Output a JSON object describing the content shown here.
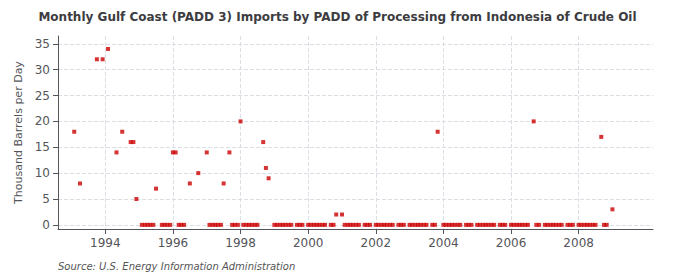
{
  "chart_data": {
    "type": "scatter",
    "title": "Monthly Gulf Coast (PADD 3) Imports by PADD of Processing from Indonesia of Crude Oil",
    "ylabel": "Thousand Barrels per Day",
    "annotation": "Source: U.S. Energy Information Administration",
    "color": "#cc0000",
    "marker": "square",
    "grid": true,
    "xlim": [
      1992.6,
      2010.2
    ],
    "xticks": [
      1994,
      1996,
      1998,
      2000,
      2002,
      2004,
      2006,
      2008
    ],
    "ylim": [
      -0.8,
      36.5
    ],
    "yticks": [
      0,
      5,
      10,
      15,
      20,
      25,
      30,
      35
    ],
    "x": [
      1993.08,
      1993.25,
      1993.75,
      1993.92,
      1994.08,
      1994.33,
      1994.5,
      1994.75,
      1994.83,
      1994.92,
      1995.08,
      1995.17,
      1995.25,
      1995.33,
      1995.42,
      1995.5,
      1995.67,
      1995.75,
      1995.83,
      1995.92,
      1996.0,
      1996.08,
      1996.17,
      1996.25,
      1996.33,
      1996.5,
      1996.75,
      1997.0,
      1997.08,
      1997.17,
      1997.25,
      1997.33,
      1997.42,
      1997.5,
      1997.67,
      1997.75,
      1997.83,
      1997.92,
      1998.0,
      1998.08,
      1998.17,
      1998.25,
      1998.33,
      1998.42,
      1998.5,
      1998.67,
      1998.75,
      1998.83,
      1999.0,
      1999.08,
      1999.17,
      1999.25,
      1999.33,
      1999.42,
      1999.5,
      1999.67,
      1999.75,
      1999.83,
      2000.0,
      2000.08,
      2000.17,
      2000.25,
      2000.33,
      2000.42,
      2000.5,
      2000.67,
      2000.75,
      2000.83,
      2001.0,
      2001.08,
      2001.17,
      2001.25,
      2001.33,
      2001.42,
      2001.5,
      2001.67,
      2001.75,
      2001.83,
      2002.0,
      2002.08,
      2002.17,
      2002.25,
      2002.33,
      2002.42,
      2002.5,
      2002.67,
      2002.75,
      2002.83,
      2003.0,
      2003.08,
      2003.17,
      2003.25,
      2003.33,
      2003.42,
      2003.5,
      2003.67,
      2003.75,
      2003.83,
      2004.0,
      2004.08,
      2004.17,
      2004.25,
      2004.33,
      2004.42,
      2004.5,
      2004.67,
      2004.75,
      2004.83,
      2005.0,
      2005.08,
      2005.17,
      2005.25,
      2005.33,
      2005.42,
      2005.5,
      2005.67,
      2005.75,
      2005.83,
      2006.0,
      2006.08,
      2006.17,
      2006.25,
      2006.33,
      2006.42,
      2006.5,
      2006.67,
      2006.75,
      2006.83,
      2007.0,
      2007.08,
      2007.17,
      2007.25,
      2007.33,
      2007.42,
      2007.5,
      2007.67,
      2007.75,
      2007.83,
      2008.0,
      2008.08,
      2008.17,
      2008.25,
      2008.33,
      2008.42,
      2008.5,
      2008.67,
      2008.75,
      2008.83,
      2009.0
    ],
    "values": [
      18,
      8,
      32,
      32,
      34,
      14,
      18,
      16,
      16,
      5,
      0,
      0,
      0,
      0,
      0,
      7,
      0,
      0,
      0,
      0,
      14,
      14,
      0,
      0,
      0,
      8,
      10,
      14,
      0,
      0,
      0,
      0,
      0,
      8,
      14,
      0,
      0,
      0,
      20,
      0,
      0,
      0,
      0,
      0,
      0,
      16,
      11,
      9,
      0,
      0,
      0,
      0,
      0,
      0,
      0,
      0,
      0,
      0,
      0,
      0,
      0,
      0,
      0,
      0,
      0,
      0,
      0,
      2,
      2,
      0,
      0,
      0,
      0,
      0,
      0,
      0,
      0,
      0,
      0,
      0,
      0,
      0,
      0,
      0,
      0,
      0,
      0,
      0,
      0,
      0,
      0,
      0,
      0,
      0,
      0,
      0,
      0,
      18,
      0,
      0,
      0,
      0,
      0,
      0,
      0,
      0,
      0,
      0,
      0,
      0,
      0,
      0,
      0,
      0,
      0,
      0,
      0,
      0,
      0,
      0,
      0,
      0,
      0,
      0,
      0,
      20,
      0,
      0,
      0,
      0,
      0,
      0,
      0,
      0,
      0,
      0,
      0,
      0,
      0,
      0,
      0,
      0,
      0,
      0,
      0,
      17,
      0,
      0,
      3
    ]
  }
}
